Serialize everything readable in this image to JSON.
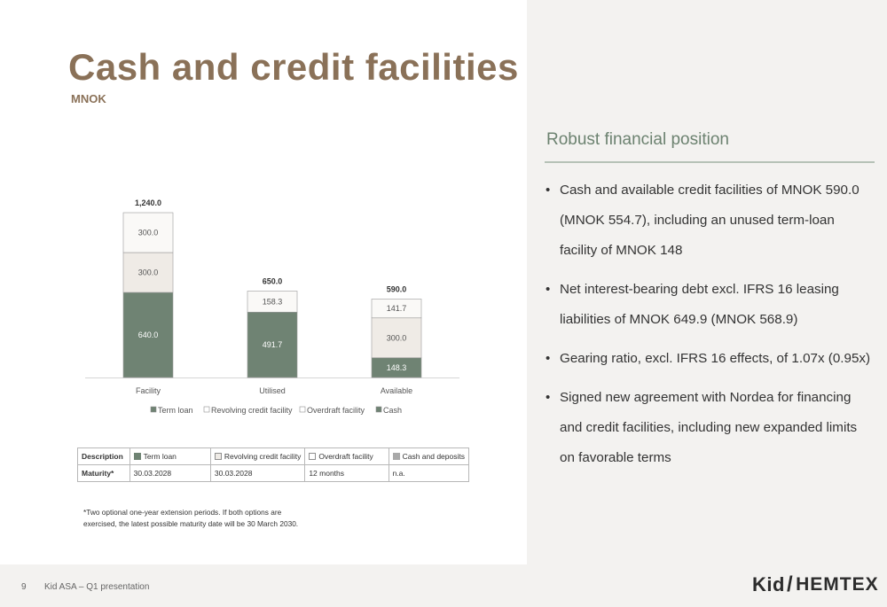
{
  "slide": {
    "title": "Cash and credit facilities",
    "subtitle": "MNOK",
    "page_number": "9",
    "page_label": "Kid ASA – Q1 presentation",
    "logo_left": "Kid",
    "logo_slash": "/",
    "logo_right": "HEMTEX"
  },
  "side": {
    "heading": "Robust financial position",
    "bullets": [
      "Cash and available credit facilities of MNOK 590.0 (MNOK 554.7), including an unused term-loan facility of MNOK 148",
      "Net interest-bearing debt excl. IFRS 16 leasing liabilities of MNOK 649.9 (MNOK 568.9)",
      "Gearing ratio, excl. IFRS 16 effects, of 1.07x (0.95x)",
      "Signed new agreement with Nordea for financing and credit facilities, including new expanded limits on favorable terms"
    ]
  },
  "chart_data": {
    "type": "bar",
    "stacked": true,
    "categories": [
      "Facility",
      "Utilised",
      "Available"
    ],
    "series": [
      {
        "name": "Term loan",
        "color": "#6f8373",
        "values": [
          640.0,
          491.7,
          148.3
        ]
      },
      {
        "name": "Revolving credit facility",
        "color": "#efebe6",
        "values": [
          300.0,
          0,
          300.0
        ]
      },
      {
        "name": "Overdraft facility",
        "color": "#faf9f7",
        "values": [
          300.0,
          158.3,
          141.7
        ]
      },
      {
        "name": "Cash",
        "color": "#6f8373",
        "values": [
          0,
          0,
          0
        ]
      }
    ],
    "totals": [
      "1,240.0",
      "650.0",
      "590.0"
    ],
    "data_labels": [
      [
        "640.0",
        "491.7",
        "148.3"
      ],
      [
        "300.0",
        "",
        "300.0"
      ],
      [
        "300.0",
        "158.3",
        "141.7"
      ],
      [
        "",
        "",
        ""
      ]
    ],
    "ylim": [
      0,
      1240
    ],
    "grid": false,
    "legend_position": "bottom"
  },
  "table": {
    "header": [
      "Description",
      "Term loan",
      "Revolving credit facility",
      "Overdraft facility",
      "Cash and deposits"
    ],
    "swatch_colors": [
      "",
      "#6f8373",
      "#efebe6",
      "#ffffff",
      "#a9a9a9"
    ],
    "row_label": "Maturity*",
    "row_values": [
      "30.03.2028",
      "30.03.2028",
      "12 months",
      "n.a."
    ]
  },
  "footnote": "*Two optional one-year extension periods. If both options are exercised, the latest possible maturity date will be 30 March 2030.",
  "colors": {
    "title": "#8a7158",
    "side_heading": "#6c8270",
    "panel_bg": "#f3f2f0"
  }
}
